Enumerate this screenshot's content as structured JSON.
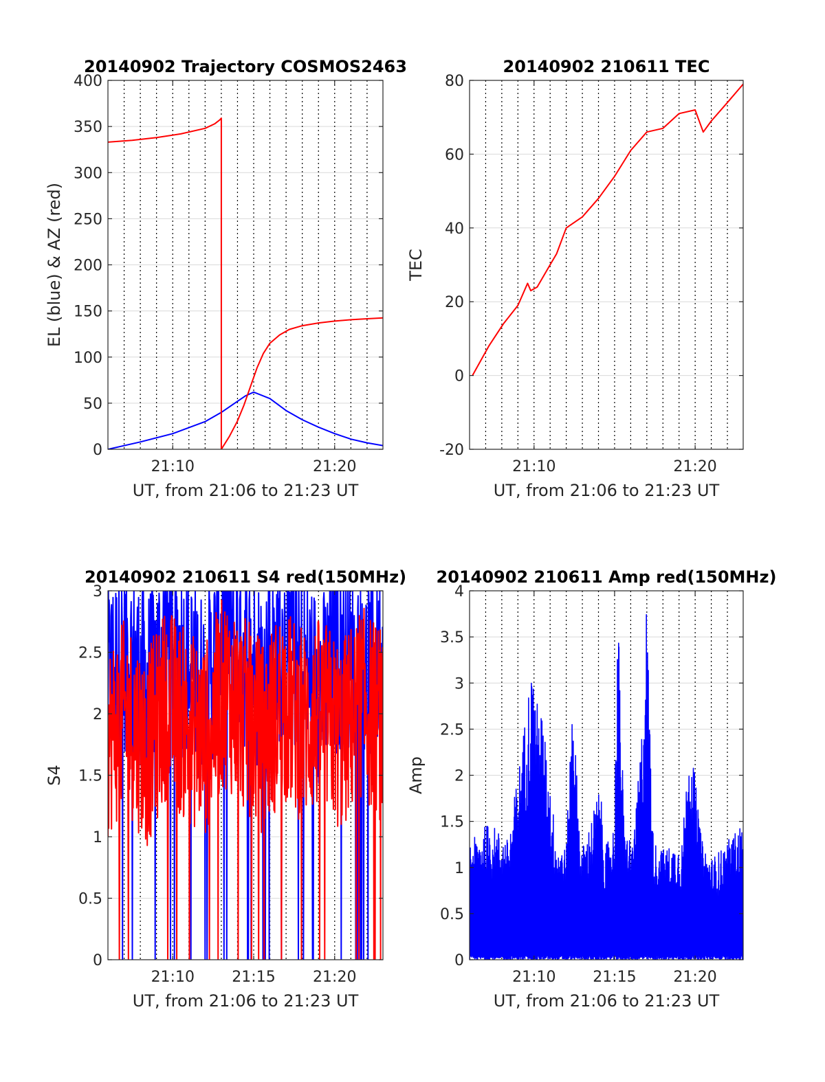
{
  "chart_data": [
    {
      "type": "line",
      "title": "20140902 Trajectory COSMOS2463",
      "xlabel": "UT, from 21:06 to 21:23 UT",
      "ylabel": "EL (blue) & AZ (red)",
      "xlim": [
        21.1,
        21.383
      ],
      "ylim": [
        0,
        400
      ],
      "yticks": [
        0,
        50,
        100,
        150,
        200,
        250,
        300,
        350,
        400
      ],
      "xticks": [
        {
          "value": 21.1667,
          "label": "21:10"
        },
        {
          "value": 21.3333,
          "label": "21:20"
        }
      ],
      "grid": true,
      "series": [
        {
          "color": "#0000ff",
          "x": [
            21.1,
            21.1333,
            21.1667,
            21.2,
            21.2167,
            21.2333,
            21.2417,
            21.25,
            21.2667,
            21.2833,
            21.3,
            21.3167,
            21.3333,
            21.35,
            21.3667,
            21.383
          ],
          "y": [
            0,
            8,
            17,
            30,
            40,
            52,
            58,
            62,
            55,
            42,
            32,
            24,
            17,
            11,
            7,
            4
          ]
        },
        {
          "color": "#ff0000",
          "x": [
            21.1,
            21.125,
            21.15,
            21.175,
            21.2,
            21.21,
            21.215,
            21.2167,
            21.2167,
            21.225,
            21.233,
            21.24,
            21.2467,
            21.2533,
            21.26,
            21.2667,
            21.2767,
            21.2867,
            21.3,
            21.3167,
            21.3333,
            21.35,
            21.3667,
            21.383
          ],
          "y": [
            333,
            335,
            338,
            342,
            348,
            353,
            357,
            359,
            0,
            14,
            30,
            48,
            68,
            88,
            104,
            115,
            124,
            130,
            134,
            137,
            139,
            140.5,
            141.5,
            142.5
          ]
        }
      ]
    },
    {
      "type": "line",
      "title": "20140902 210611 TEC",
      "xlabel": "UT, from 21:06 to 21:23 UT",
      "ylabel": "TEC",
      "xlim": [
        21.1,
        21.383
      ],
      "ylim": [
        -20,
        80
      ],
      "yticks": [
        -20,
        0,
        20,
        40,
        60,
        80
      ],
      "xticks": [
        {
          "value": 21.1667,
          "label": "21:10"
        },
        {
          "value": 21.3333,
          "label": "21:20"
        }
      ],
      "grid": true,
      "series": [
        {
          "color": "#ff0000",
          "x": [
            21.103,
            21.12,
            21.135,
            21.15,
            21.16,
            21.1633,
            21.17,
            21.1833,
            21.19,
            21.2,
            21.2167,
            21.2333,
            21.25,
            21.2667,
            21.2833,
            21.3,
            21.3167,
            21.3333,
            21.3417,
            21.35,
            21.3667,
            21.383
          ],
          "y": [
            0,
            8,
            14,
            19,
            25,
            23,
            24,
            30,
            33,
            40,
            43,
            48,
            54,
            61,
            66,
            67,
            71,
            72,
            66,
            69,
            74,
            79
          ]
        }
      ]
    },
    {
      "type": "line",
      "title": "20140902 210611 S4 red(150MHz)",
      "xlabel": "UT, from 21:06 to 21:23 UT",
      "ylabel": "S4",
      "xlim": [
        21.1,
        21.383
      ],
      "ylim": [
        0,
        3
      ],
      "yticks": [
        0,
        0.5,
        1,
        1.5,
        2,
        2.5,
        3
      ],
      "xticks": [
        {
          "value": 21.1667,
          "label": "21:10"
        },
        {
          "value": 21.25,
          "label": "21:15"
        },
        {
          "value": 21.3333,
          "label": "21:20"
        }
      ],
      "grid": true,
      "series": [
        {
          "color": "#0000ff",
          "x": [
            21.1,
            21.12,
            21.14,
            21.16,
            21.18,
            21.2,
            21.22,
            21.24,
            21.26,
            21.28,
            21.3,
            21.32,
            21.34,
            21.36,
            21.383
          ],
          "y": [
            2.3,
            2.5,
            2.2,
            2.6,
            2.4,
            2.2,
            2.7,
            2.5,
            2.3,
            2.6,
            2.4,
            2.2,
            2.5,
            2.3,
            2.4
          ]
        },
        {
          "color": "#ff0000",
          "x": [
            21.1,
            21.12,
            21.14,
            21.16,
            21.18,
            21.2,
            21.22,
            21.24,
            21.26,
            21.28,
            21.3,
            21.32,
            21.34,
            21.36,
            21.383
          ],
          "y": [
            1.8,
            2.0,
            1.7,
            2.1,
            1.9,
            1.8,
            2.2,
            2.0,
            1.8,
            2.1,
            1.9,
            2.0,
            1.8,
            2.1,
            1.9
          ]
        }
      ]
    },
    {
      "type": "line",
      "title": "20140902 210611 Amp red(150MHz)",
      "xlabel": "UT, from 21:06 to 21:23 UT",
      "ylabel": "Amp",
      "xlim": [
        21.1,
        21.383
      ],
      "ylim": [
        0,
        4
      ],
      "yticks": [
        0,
        0.5,
        1,
        1.5,
        2,
        2.5,
        3,
        3.5,
        4
      ],
      "xticks": [
        {
          "value": 21.1667,
          "label": "21:10"
        },
        {
          "value": 21.25,
          "label": "21:15"
        },
        {
          "value": 21.3333,
          "label": "21:20"
        }
      ],
      "grid": true,
      "series": [
        {
          "color": "#0000ff",
          "x": [
            21.103,
            21.12,
            21.13,
            21.14,
            21.155,
            21.16,
            21.165,
            21.17,
            21.175,
            21.18,
            21.19,
            21.2,
            21.207,
            21.21,
            21.215,
            21.22,
            21.235,
            21.24,
            21.25,
            21.253,
            21.255,
            21.26,
            21.27,
            21.28,
            21.282,
            21.2833,
            21.29,
            21.3,
            21.32,
            21.328,
            21.333,
            21.34,
            21.35,
            21.36,
            21.383
          ],
          "y": [
            1.3,
            1.5,
            1.4,
            1.3,
            2.4,
            2.9,
            3.2,
            2.8,
            2.7,
            2.2,
            1.3,
            1.2,
            3.1,
            2.2,
            1.2,
            1.3,
            1.9,
            1.2,
            1.5,
            3.9,
            3.3,
            1.4,
            1.3,
            2.8,
            3.8,
            3.9,
            1.3,
            1.2,
            1.3,
            2.5,
            2.0,
            1.3,
            1.1,
            1.2,
            1.5
          ]
        }
      ]
    }
  ]
}
